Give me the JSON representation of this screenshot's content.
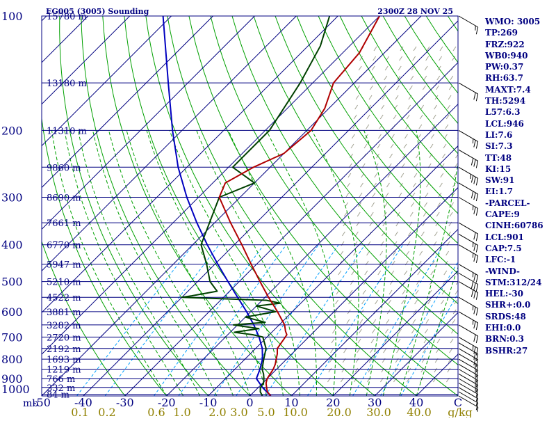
{
  "chart_data": {
    "type": "skew-t log-p sounding",
    "title": "EG005 (3005) Sounding",
    "valid_time": "2300Z 28 NOV 25",
    "pressure_axis": {
      "label": "mb",
      "ticks": [
        100,
        200,
        300,
        400,
        500,
        600,
        700,
        800,
        900,
        1000
      ],
      "range": [
        1000,
        100
      ],
      "scale": "log"
    },
    "temperature_axis": {
      "unit": "C",
      "ticks": [
        -50,
        -40,
        -30,
        -20,
        -10,
        0,
        10,
        20,
        30,
        40
      ],
      "range": [
        -50,
        50
      ]
    },
    "mixing_ratio_axis": {
      "unit": "g/kg",
      "ticks": [
        "0.1",
        "0.2",
        "0.6",
        "1.0",
        "2.0",
        "3.0",
        "5.0",
        "10.0",
        "20.0",
        "30.0",
        "40.0"
      ]
    },
    "height_labels": [
      {
        "p": 100,
        "text": "15780 m"
      },
      {
        "p": 150,
        "text": "13180 m"
      },
      {
        "p": 200,
        "text": "11310 m"
      },
      {
        "p": 250,
        "text": "9860 m"
      },
      {
        "p": 300,
        "text": "8690 m"
      },
      {
        "p": 350,
        "text": "7661 m"
      },
      {
        "p": 400,
        "text": "6770 m"
      },
      {
        "p": 450,
        "text": "5947 m"
      },
      {
        "p": 500,
        "text": "5210 m"
      },
      {
        "p": 550,
        "text": "4522 m"
      },
      {
        "p": 600,
        "text": "3881 m"
      },
      {
        "p": 650,
        "text": "3282 m"
      },
      {
        "p": 700,
        "text": "2720 m"
      },
      {
        "p": 750,
        "text": "2192 m"
      },
      {
        "p": 800,
        "text": "1693 m"
      },
      {
        "p": 850,
        "text": "1219 m"
      },
      {
        "p": 900,
        "text": "766 m"
      },
      {
        "p": 950,
        "text": "332 m"
      },
      {
        "p": 990,
        "text": "84 m"
      }
    ],
    "temperature_profile": [
      [
        1000,
        5
      ],
      [
        975,
        3.2
      ],
      [
        950,
        2
      ],
      [
        925,
        0.8
      ],
      [
        900,
        0
      ],
      [
        875,
        -0.4
      ],
      [
        850,
        -0.8
      ],
      [
        825,
        -1.5
      ],
      [
        800,
        -2.5
      ],
      [
        775,
        -3.5
      ],
      [
        750,
        -4.8
      ],
      [
        700,
        -5.6
      ],
      [
        690,
        -5.8
      ],
      [
        675,
        -7
      ],
      [
        650,
        -8.7
      ],
      [
        600,
        -13.6
      ],
      [
        575,
        -16.3
      ],
      [
        550,
        -19.2
      ],
      [
        500,
        -25
      ],
      [
        450,
        -31.3
      ],
      [
        400,
        -38.2
      ],
      [
        350,
        -46.2
      ],
      [
        300,
        -55
      ],
      [
        275,
        -57
      ],
      [
        250,
        -54
      ],
      [
        230,
        -50
      ],
      [
        200,
        -49
      ],
      [
        175,
        -51
      ],
      [
        150,
        -55
      ],
      [
        125,
        -56
      ],
      [
        100,
        -60
      ]
    ],
    "dewpoint_profile": [
      [
        1000,
        3
      ],
      [
        975,
        1.5
      ],
      [
        950,
        0.5
      ],
      [
        925,
        0.2
      ],
      [
        900,
        -0.8
      ],
      [
        875,
        -2
      ],
      [
        850,
        -3.5
      ],
      [
        800,
        -5.5
      ],
      [
        750,
        -7.5
      ],
      [
        700,
        -11
      ],
      [
        690,
        -14
      ],
      [
        680,
        -19
      ],
      [
        665,
        -14
      ],
      [
        650,
        -21
      ],
      [
        640,
        -14
      ],
      [
        620,
        -20
      ],
      [
        600,
        -14
      ],
      [
        580,
        -20
      ],
      [
        570,
        -15
      ],
      [
        560,
        -19
      ],
      [
        550,
        -40
      ],
      [
        545,
        -38
      ],
      [
        530,
        -33
      ],
      [
        500,
        -37
      ],
      [
        450,
        -42
      ],
      [
        400,
        -48
      ],
      [
        300,
        -55
      ],
      [
        275,
        -50
      ],
      [
        250,
        -59
      ],
      [
        200,
        -59
      ],
      [
        150,
        -63
      ],
      [
        120,
        -67
      ],
      [
        100,
        -72
      ]
    ],
    "parcel_profile": [
      [
        1000,
        5
      ],
      [
        950,
        1
      ],
      [
        900,
        -2.6
      ],
      [
        850,
        -4
      ],
      [
        800,
        -5.8
      ],
      [
        750,
        -8.4
      ],
      [
        700,
        -11.9
      ],
      [
        650,
        -16.1
      ],
      [
        600,
        -21
      ],
      [
        550,
        -26.6
      ],
      [
        500,
        -32.7
      ],
      [
        450,
        -39.3
      ],
      [
        400,
        -46.5
      ],
      [
        350,
        -54.3
      ],
      [
        300,
        -62.8
      ],
      [
        250,
        -72.1
      ],
      [
        200,
        -82.3
      ],
      [
        150,
        -94.7
      ],
      [
        100,
        -112
      ]
    ],
    "wind_profile": [
      {
        "p": 1000,
        "dir": 300,
        "spd": 5
      },
      {
        "p": 975,
        "dir": 300,
        "spd": 10
      },
      {
        "p": 950,
        "dir": 300,
        "spd": 10
      },
      {
        "p": 925,
        "dir": 300,
        "spd": 10
      },
      {
        "p": 900,
        "dir": 300,
        "spd": 15
      },
      {
        "p": 875,
        "dir": 300,
        "spd": 15
      },
      {
        "p": 850,
        "dir": 300,
        "spd": 15
      },
      {
        "p": 825,
        "dir": 300,
        "spd": 15
      },
      {
        "p": 800,
        "dir": 300,
        "spd": 15
      },
      {
        "p": 775,
        "dir": 300,
        "spd": 15
      },
      {
        "p": 750,
        "dir": 300,
        "spd": 20
      },
      {
        "p": 725,
        "dir": 300,
        "spd": 20
      },
      {
        "p": 700,
        "dir": 300,
        "spd": 25
      },
      {
        "p": 650,
        "dir": 300,
        "spd": 20
      },
      {
        "p": 600,
        "dir": 300,
        "spd": 25
      },
      {
        "p": 550,
        "dir": 300,
        "spd": 25
      },
      {
        "p": 500,
        "dir": 300,
        "spd": 30
      },
      {
        "p": 475,
        "dir": 300,
        "spd": 30
      },
      {
        "p": 450,
        "dir": 300,
        "spd": 25
      },
      {
        "p": 400,
        "dir": 300,
        "spd": 25
      },
      {
        "p": 375,
        "dir": 300,
        "spd": 25
      },
      {
        "p": 350,
        "dir": 300,
        "spd": 20
      },
      {
        "p": 300,
        "dir": 300,
        "spd": 25
      },
      {
        "p": 275,
        "dir": 300,
        "spd": 30
      },
      {
        "p": 250,
        "dir": 300,
        "spd": 35
      },
      {
        "p": 225,
        "dir": 300,
        "spd": 30
      },
      {
        "p": 200,
        "dir": 300,
        "spd": 25
      },
      {
        "p": 150,
        "dir": 300,
        "spd": 20
      },
      {
        "p": 100,
        "dir": 300,
        "spd": 15
      }
    ],
    "colors": {
      "isobar": "#000080",
      "isotherm": "#000080",
      "dry_adiabat": "#00a000",
      "moist_adiabat": "#00a000",
      "mixing_ratio": "#00a0ff",
      "temperature": "#b00000",
      "dewpoint": "#004000",
      "parcel": "#0000c0",
      "unstable_hatch": "#a0a090",
      "wind_barb": "#000000",
      "mixing_label": "#908000",
      "sidebar_text": "#000080"
    }
  },
  "indices": [
    "WMO: 3005",
    "TP:269",
    "FRZ:922",
    "WB0:940",
    "PW:0.37",
    "RH:63.7",
    "MAXT:7.4",
    "TH:5294",
    "L57:6.3",
    "LCL:946",
    "LI:7.6",
    "SI:7.3",
    "TT:48",
    "KI:15",
    "SW:91",
    "EI:1.7",
    "-PARCEL-",
    "CAPE:9",
    "CINH:60786",
    "LCL:901",
    "CAP:7.5",
    "LFC:-1",
    "-WIND-",
    "STM:312/24",
    "HEL:-30",
    "SHR+:0.0",
    "SRDS:48",
    "EHI:0.0",
    "BRN:0.3",
    "BSHR:27"
  ]
}
